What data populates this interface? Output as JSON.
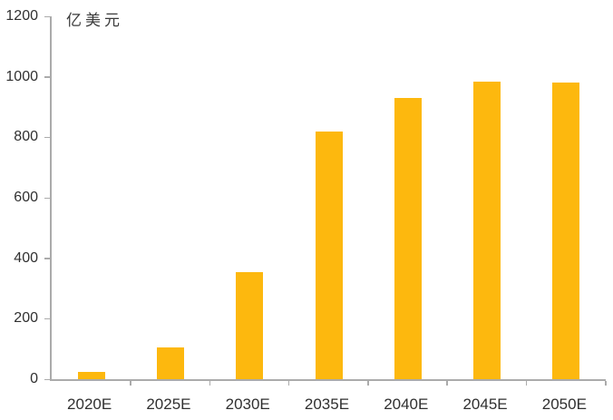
{
  "chart_data": {
    "type": "bar",
    "title": "",
    "unit_label": "亿美元",
    "xlabel": "",
    "ylabel": "亿美元",
    "categories": [
      "2020E",
      "2025E",
      "2030E",
      "2035E",
      "2040E",
      "2045E",
      "2050E"
    ],
    "values": [
      25,
      105,
      355,
      820,
      930,
      985,
      980
    ],
    "ylim": [
      0,
      1200
    ],
    "yticks": [
      0,
      200,
      400,
      600,
      800,
      1000,
      1200
    ],
    "grid": false,
    "legend": false,
    "bar_color": "#FDB80E",
    "axis_color": "#ABABAB",
    "text_color": "#303030"
  }
}
